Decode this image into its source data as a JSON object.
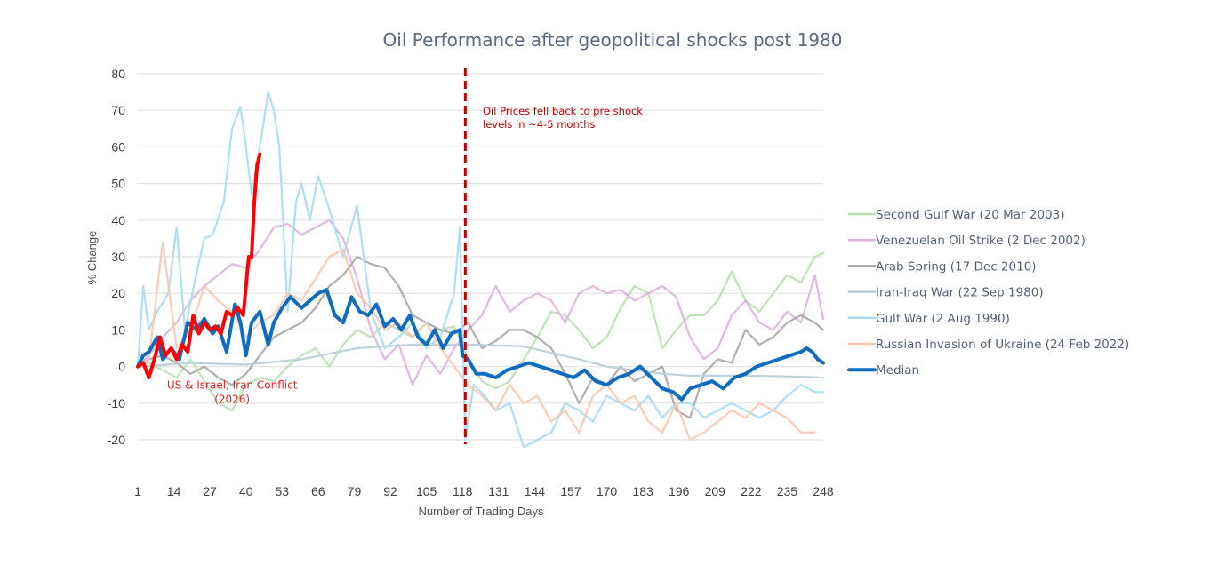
{
  "chart_data": {
    "type": "line",
    "title": "Oil Performance after geopolitical shocks post 1980",
    "xlabel": "Number of Trading Days",
    "ylabel": "% Change",
    "xlim": [
      1,
      248
    ],
    "ylim": [
      -20,
      80
    ],
    "grid": true,
    "legend_position": "right",
    "x_ticks": [
      "1",
      "14",
      "27",
      "40",
      "53",
      "66",
      "79",
      "92",
      "105",
      "118",
      "131",
      "144",
      "157",
      "170",
      "183",
      "196",
      "209",
      "222",
      "235",
      "248"
    ],
    "y_ticks": [
      "80",
      "70",
      "60",
      "50",
      "40",
      "30",
      "20",
      "10",
      "0",
      "-10",
      "-20"
    ],
    "series": [
      {
        "name": "Second Gulf War (20 Mar 2003)",
        "color": "#b9dfb0",
        "x": [
          1,
          5,
          10,
          15,
          20,
          25,
          30,
          35,
          40,
          45,
          50,
          55,
          60,
          65,
          70,
          75,
          80,
          85,
          90,
          95,
          100,
          105,
          110,
          115,
          120,
          125,
          130,
          135,
          140,
          145,
          150,
          155,
          160,
          165,
          170,
          175,
          180,
          185,
          190,
          195,
          200,
          205,
          210,
          215,
          220,
          225,
          230,
          235,
          240,
          245,
          248
        ],
        "values": [
          0,
          1,
          -1,
          -3,
          2,
          -4,
          -10,
          -12,
          -5,
          -3,
          -4,
          0,
          3,
          5,
          0,
          6,
          10,
          8,
          12,
          10,
          8,
          12,
          10,
          11,
          2,
          -4,
          -6,
          -4,
          2,
          8,
          15,
          14,
          10,
          5,
          8,
          16,
          22,
          20,
          5,
          10,
          14,
          14,
          18,
          26,
          18,
          15,
          20,
          25,
          23,
          30,
          31
        ]
      },
      {
        "name": "Venezuelan Oil Strike (2 Dec 2002)",
        "color": "#dcb3dd",
        "x": [
          1,
          5,
          10,
          15,
          20,
          25,
          30,
          35,
          40,
          45,
          50,
          55,
          60,
          65,
          70,
          75,
          80,
          85,
          90,
          95,
          100,
          105,
          110,
          115,
          120,
          125,
          130,
          135,
          140,
          145,
          150,
          155,
          160,
          165,
          170,
          175,
          180,
          185,
          190,
          195,
          200,
          205,
          210,
          215,
          220,
          225,
          230,
          235,
          240,
          245,
          248
        ],
        "values": [
          0,
          3,
          8,
          12,
          18,
          22,
          25,
          28,
          27,
          32,
          38,
          39,
          36,
          38,
          40,
          35,
          24,
          10,
          2,
          6,
          -5,
          3,
          -2,
          5,
          10,
          14,
          22,
          15,
          18,
          20,
          18,
          12,
          20,
          22,
          20,
          21,
          18,
          20,
          22,
          19,
          8,
          2,
          5,
          14,
          18,
          12,
          10,
          15,
          12,
          25,
          13
        ]
      },
      {
        "name": "Arab Spring (17 Dec 2010)",
        "color": "#a6a6a6",
        "x": [
          1,
          5,
          10,
          15,
          20,
          25,
          30,
          35,
          40,
          45,
          50,
          55,
          60,
          65,
          70,
          75,
          80,
          85,
          90,
          95,
          100,
          105,
          110,
          115,
          120,
          125,
          130,
          135,
          140,
          145,
          150,
          155,
          160,
          165,
          170,
          175,
          180,
          185,
          190,
          195,
          200,
          205,
          210,
          215,
          220,
          225,
          230,
          235,
          240,
          245,
          248
        ],
        "values": [
          0,
          2,
          3,
          1,
          -2,
          0,
          -3,
          -5,
          -2,
          3,
          8,
          10,
          12,
          16,
          22,
          25,
          30,
          28,
          27,
          22,
          14,
          12,
          10,
          9,
          12,
          5,
          7,
          10,
          10,
          8,
          5,
          -2,
          -10,
          -3,
          -5,
          0,
          -4,
          -2,
          0,
          -12,
          -14,
          -2,
          2,
          1,
          10,
          6,
          8,
          12,
          14,
          12,
          10
        ]
      },
      {
        "name": "Iran-Iraq War (22 Sep 1980)",
        "color": "#b7cdd8",
        "x": [
          1,
          20,
          40,
          60,
          80,
          100,
          120,
          140,
          160,
          170,
          180,
          190,
          200,
          210,
          220,
          230,
          240,
          248
        ],
        "values": [
          0,
          1,
          0.5,
          2,
          5,
          6,
          6,
          5.5,
          2,
          0,
          -1,
          -2,
          -2.5,
          -2.5,
          -2.5,
          -2.6,
          -2.8,
          -3
        ]
      },
      {
        "name": "Gulf War (2 Aug 1990)",
        "color": "#a9daf0",
        "x": [
          1,
          3,
          5,
          8,
          12,
          15,
          18,
          22,
          25,
          28,
          32,
          35,
          38,
          40,
          42,
          45,
          48,
          50,
          52,
          55,
          58,
          60,
          63,
          66,
          70,
          75,
          80,
          85,
          90,
          95,
          100,
          105,
          110,
          115,
          117,
          119,
          122,
          126,
          130,
          135,
          140,
          145,
          150,
          155,
          160,
          165,
          170,
          175,
          180,
          185,
          190,
          195,
          200,
          205,
          210,
          215,
          220,
          225,
          230,
          235,
          240,
          245,
          248
        ],
        "values": [
          0,
          22,
          10,
          15,
          20,
          38,
          10,
          25,
          35,
          36,
          45,
          65,
          71,
          60,
          47,
          60,
          75,
          70,
          60,
          15,
          45,
          50,
          40,
          52,
          43,
          30,
          44,
          15,
          5,
          8,
          12,
          5,
          8,
          20,
          38,
          -20,
          -5,
          -8,
          -12,
          -10,
          -22,
          -20,
          -18,
          -10,
          -12,
          -15,
          -8,
          -10,
          -12,
          -8,
          -14,
          -10,
          -10,
          -14,
          -12,
          -10,
          -12,
          -14,
          -12,
          -8,
          -5,
          -7,
          -7
        ]
      },
      {
        "name": "Russian Invasion of Ukraine (24 Feb 2022)",
        "color": "#f6c6b0",
        "x": [
          1,
          5,
          10,
          15,
          20,
          25,
          30,
          35,
          40,
          45,
          50,
          55,
          60,
          65,
          70,
          75,
          80,
          85,
          90,
          95,
          100,
          105,
          110,
          115,
          120,
          125,
          130,
          135,
          140,
          145,
          150,
          155,
          160,
          165,
          170,
          175,
          180,
          185,
          190,
          195,
          200,
          205,
          210,
          215,
          220,
          225,
          230,
          235,
          240,
          245
        ],
        "values": [
          0,
          2,
          34,
          5,
          10,
          22,
          18,
          15,
          8,
          12,
          14,
          20,
          18,
          24,
          30,
          32,
          20,
          16,
          10,
          12,
          8,
          12,
          5,
          0,
          -5,
          -8,
          -12,
          -5,
          -10,
          -8,
          -15,
          -12,
          -18,
          -8,
          -5,
          -10,
          -8,
          -15,
          -18,
          -10,
          -20,
          -18,
          -15,
          -12,
          -14,
          -10,
          -12,
          -14,
          -18,
          -18
        ]
      },
      {
        "name": "Median",
        "color": "#0f6cbf",
        "x": [
          1,
          3,
          5,
          8,
          10,
          13,
          16,
          19,
          22,
          25,
          28,
          30,
          33,
          36,
          38,
          40,
          42,
          45,
          48,
          50,
          53,
          56,
          60,
          63,
          66,
          69,
          72,
          75,
          78,
          81,
          84,
          87,
          90,
          93,
          96,
          99,
          102,
          105,
          108,
          111,
          114,
          117,
          118,
          120,
          123,
          126,
          130,
          134,
          138,
          142,
          146,
          150,
          154,
          158,
          162,
          166,
          170,
          174,
          178,
          182,
          186,
          190,
          194,
          197,
          200,
          204,
          208,
          212,
          216,
          220,
          224,
          228,
          232,
          236,
          240,
          242,
          244,
          246,
          248
        ],
        "values": [
          0,
          3,
          4,
          8,
          2,
          5,
          2,
          12,
          10,
          13,
          9,
          11,
          4,
          17,
          12,
          3,
          12,
          15,
          6,
          12,
          16,
          19,
          16,
          18,
          20,
          21,
          14,
          12,
          19,
          15,
          14,
          17,
          11,
          13,
          10,
          14,
          8,
          6,
          10,
          5,
          9,
          10,
          3,
          2,
          -2,
          -2,
          -3,
          -1,
          0,
          1,
          0,
          -1,
          -2,
          -3,
          -1,
          -4,
          -5,
          -3,
          -2,
          0,
          -3,
          -6,
          -7,
          -9,
          -6,
          -5,
          -4,
          -6,
          -3,
          -2,
          0,
          1,
          2,
          3,
          4,
          5,
          4,
          2,
          1
        ]
      },
      {
        "name": "US & Israel, Iran Conflict (2026)",
        "color": "#ff0000",
        "x": [
          1,
          3,
          5,
          7,
          9,
          11,
          13,
          15,
          17,
          19,
          21,
          23,
          25,
          27,
          29,
          31,
          33,
          35,
          37,
          39,
          41,
          42,
          43,
          44,
          45
        ],
        "values": [
          0,
          1,
          -3,
          2,
          8,
          3,
          5,
          2,
          6,
          4,
          14,
          9,
          12,
          10,
          11,
          9,
          15,
          14,
          16,
          14,
          30,
          30,
          45,
          55,
          58
        ]
      }
    ],
    "annotations": [
      {
        "text": "US & Israel, Iran Conflict",
        "line2": "(2026)",
        "color": "#ee2222",
        "anchor_x": 27,
        "anchor_y": -6
      },
      {
        "text": "Oil Prices fell back to pre shock",
        "line2": "levels in ~4-5 months",
        "color": "#c00000",
        "anchor_x": 124,
        "anchor_y": 69
      }
    ],
    "reference_line": {
      "x": 119,
      "style": "dashed",
      "color": "#c00000"
    }
  }
}
